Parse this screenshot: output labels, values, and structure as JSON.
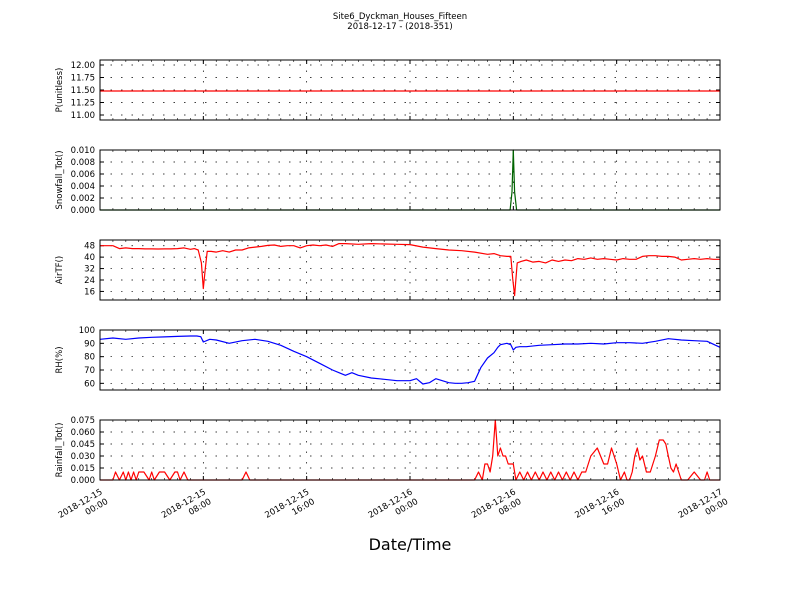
{
  "title": "Site6_Dyckman_Houses_Fifteen",
  "subtitle": "2018-12-17 - (2018-351)",
  "xlabel": "Date/Time",
  "x_ticks": [
    {
      "hour": 0,
      "line1": "2018-12-15",
      "line2": "00:00"
    },
    {
      "hour": 8,
      "line1": "2018-12-15",
      "line2": "08:00"
    },
    {
      "hour": 16,
      "line1": "2018-12-15",
      "line2": "16:00"
    },
    {
      "hour": 24,
      "line1": "2018-12-16",
      "line2": "00:00"
    },
    {
      "hour": 32,
      "line1": "2018-12-16",
      "line2": "08:00"
    },
    {
      "hour": 40,
      "line1": "2018-12-16",
      "line2": "16:00"
    },
    {
      "hour": 48,
      "line1": "2018-12-17",
      "line2": "00:00"
    }
  ],
  "chart_data": [
    {
      "type": "line",
      "ylabel": "P(unitless)",
      "color": "#ff0000",
      "xlim": [
        0,
        48
      ],
      "ylim": [
        10.9,
        12.1
      ],
      "yticks": [
        11.0,
        11.25,
        11.5,
        11.75,
        12.0
      ],
      "yticklabels": [
        "11.00",
        "11.25",
        "11.50",
        "11.75",
        "12.00"
      ],
      "grid": true,
      "x": [
        0,
        48
      ],
      "y": [
        11.48,
        11.48
      ]
    },
    {
      "type": "line",
      "ylabel": "Snowfall_Tot()",
      "color": "#006400",
      "xlim": [
        0,
        48
      ],
      "ylim": [
        0,
        0.01
      ],
      "yticks": [
        0,
        0.002,
        0.004,
        0.006,
        0.008,
        0.01
      ],
      "yticklabels": [
        "0.000",
        "0.002",
        "0.004",
        "0.006",
        "0.008",
        "0.010"
      ],
      "grid": true,
      "x": [
        0,
        31.75,
        31.9,
        32.0,
        32.1,
        32.25,
        48
      ],
      "y": [
        0,
        0,
        0.003,
        0.01,
        0.003,
        0,
        0
      ]
    },
    {
      "type": "line",
      "ylabel": "AirTF()",
      "color": "#ff0000",
      "xlim": [
        0,
        48
      ],
      "ylim": [
        10,
        52
      ],
      "yticks": [
        16,
        24,
        32,
        40,
        48
      ],
      "yticklabels": [
        "16",
        "24",
        "32",
        "40",
        "48"
      ],
      "grid": true,
      "x": [
        0,
        0.5,
        1.0,
        1.5,
        2.0,
        2.5,
        3.0,
        3.5,
        4.0,
        4.5,
        5.0,
        5.5,
        6.0,
        6.5,
        7.0,
        7.3,
        7.6,
        7.85,
        8.0,
        8.15,
        8.3,
        8.6,
        9.0,
        9.5,
        10.0,
        10.5,
        11.0,
        11.5,
        12.0,
        12.5,
        13.0,
        13.5,
        14.0,
        14.5,
        15.0,
        15.5,
        16.0,
        16.5,
        17.0,
        17.5,
        18.0,
        18.5,
        19.0,
        20.0,
        21.0,
        22.0,
        23.0,
        24.0,
        25.0,
        26.0,
        27.0,
        28.0,
        29.0,
        30.0,
        30.5,
        31.0,
        31.5,
        31.8,
        31.95,
        32.1,
        32.3,
        32.6,
        33.0,
        33.5,
        34.0,
        34.5,
        35.0,
        35.5,
        36.0,
        36.5,
        37.0,
        37.5,
        38.0,
        38.5,
        39.0,
        39.5,
        40.0,
        40.5,
        41.0,
        41.5,
        42.0,
        42.5,
        43.0,
        43.5,
        44.0,
        44.5,
        45.0,
        45.5,
        46.0,
        46.5,
        47.0,
        47.5,
        48.0
      ],
      "y": [
        48,
        48,
        48,
        46,
        46.5,
        46,
        46,
        45.8,
        45.8,
        45.7,
        45.8,
        45.8,
        46,
        46.5,
        45.5,
        46,
        45,
        36,
        18,
        32,
        44,
        44,
        43.5,
        44.5,
        43.5,
        45,
        45,
        46.5,
        47,
        47.5,
        48.2,
        48.5,
        47.5,
        48,
        48,
        46.5,
        48,
        48.5,
        48,
        48.5,
        47.5,
        49.5,
        49.5,
        49,
        49.5,
        49.2,
        49,
        48.8,
        47,
        46,
        45,
        44.5,
        43.5,
        42,
        42.5,
        41,
        40.5,
        40.5,
        25,
        13,
        36,
        37,
        38,
        36.5,
        37,
        36,
        38,
        37,
        38,
        37.5,
        39,
        38.5,
        39.5,
        38.5,
        39,
        38.5,
        38,
        39,
        38.5,
        38.5,
        40.5,
        41,
        41,
        40.5,
        40.5,
        40,
        38,
        38.5,
        39,
        38.5,
        39,
        38.5,
        38.5
      ]
    },
    {
      "type": "line",
      "ylabel": "RH(%)",
      "color": "#0000ff",
      "xlim": [
        0,
        48
      ],
      "ylim": [
        55,
        100
      ],
      "yticks": [
        60,
        70,
        80,
        90,
        100
      ],
      "yticklabels": [
        "60",
        "70",
        "80",
        "90",
        "100"
      ],
      "grid": true,
      "x": [
        0,
        1,
        2,
        3,
        4,
        5,
        6,
        7,
        7.5,
        7.8,
        8.0,
        8.5,
        9,
        10,
        11,
        12,
        13,
        14,
        15,
        16,
        17,
        18,
        18.5,
        19,
        19.5,
        20,
        21,
        22,
        23,
        24,
        24.5,
        25,
        25.5,
        26,
        26.5,
        27,
        27.5,
        28,
        28.5,
        29,
        29.5,
        30,
        30.5,
        30.8,
        31.0,
        31.5,
        31.8,
        32.0,
        32.2,
        32.5,
        33,
        34,
        35,
        36,
        37,
        38,
        39,
        40,
        41,
        42,
        43,
        44,
        45,
        46,
        47,
        48
      ],
      "y": [
        93,
        94,
        93,
        94,
        94.5,
        94.8,
        95.2,
        95.5,
        95.5,
        95,
        91,
        93,
        92.5,
        90,
        92,
        93,
        91.5,
        88.5,
        84,
        80,
        75,
        70,
        68,
        66,
        68,
        66,
        64,
        63,
        62,
        62,
        63.5,
        59.5,
        60.5,
        63.5,
        62,
        60.5,
        60,
        60,
        60.5,
        61.5,
        72,
        79,
        83,
        87,
        89,
        90,
        89,
        85,
        87,
        87.5,
        87.5,
        88.5,
        89,
        89.5,
        89.5,
        90,
        89.5,
        90.5,
        90.5,
        90,
        91.5,
        93.5,
        92.5,
        92,
        91.5,
        87
      ]
    },
    {
      "type": "line",
      "ylabel": "Rainfall_Tot()",
      "color": "#ff0000",
      "xlim": [
        0,
        48
      ],
      "ylim": [
        0,
        0.075
      ],
      "yticks": [
        0,
        0.015,
        0.03,
        0.045,
        0.06,
        0.075
      ],
      "yticklabels": [
        "0.000",
        "0.015",
        "0.030",
        "0.045",
        "0.060",
        "0.075"
      ],
      "grid": true,
      "x": [
        0,
        1.0,
        1.2,
        1.5,
        1.8,
        2.0,
        2.2,
        2.4,
        2.6,
        2.8,
        3.0,
        3.4,
        3.8,
        4.0,
        4.2,
        4.6,
        5.0,
        5.4,
        5.8,
        6.0,
        6.2,
        6.5,
        6.8,
        7.0,
        11.0,
        11.3,
        11.6,
        29.0,
        29.3,
        29.6,
        29.8,
        30.0,
        30.2,
        30.4,
        30.6,
        30.8,
        31.0,
        31.2,
        31.4,
        31.6,
        31.8,
        32.0,
        32.2,
        32.5,
        32.8,
        33.1,
        33.4,
        33.7,
        34.0,
        34.3,
        34.6,
        34.9,
        35.2,
        35.5,
        35.8,
        36.1,
        36.4,
        36.7,
        37.0,
        37.3,
        37.6,
        38.0,
        38.5,
        39.0,
        39.3,
        39.6,
        40.0,
        40.3,
        40.6,
        40.8,
        41.0,
        41.2,
        41.4,
        41.6,
        41.8,
        42.0,
        42.3,
        42.6,
        43.0,
        43.3,
        43.6,
        43.8,
        44.0,
        44.2,
        44.4,
        44.6,
        44.8,
        45.0,
        45.5,
        46.0,
        46.5,
        46.8,
        47.0,
        47.2,
        47.5,
        47.8,
        48.0
      ],
      "y": [
        0,
        0,
        0.01,
        0,
        0.01,
        0,
        0.01,
        0,
        0.01,
        0,
        0.01,
        0.01,
        0,
        0.01,
        0,
        0.01,
        0.01,
        0,
        0.01,
        0.01,
        0,
        0.01,
        0,
        0,
        0,
        0.01,
        0,
        0,
        0.01,
        0,
        0.02,
        0.02,
        0.01,
        0.03,
        0.075,
        0.03,
        0.04,
        0.03,
        0.03,
        0.02,
        0.02,
        0.02,
        0,
        0.01,
        0,
        0.01,
        0,
        0.01,
        0,
        0.01,
        0,
        0.01,
        0,
        0.01,
        0,
        0.01,
        0,
        0.01,
        0,
        0.01,
        0.01,
        0.03,
        0.04,
        0.02,
        0.02,
        0.04,
        0.02,
        0,
        0.01,
        0,
        0,
        0.01,
        0.03,
        0.04,
        0.025,
        0.03,
        0.01,
        0.01,
        0.03,
        0.05,
        0.05,
        0.045,
        0.03,
        0.015,
        0.01,
        0.02,
        0.01,
        0,
        0,
        0.01,
        0,
        0,
        0.01,
        0,
        0,
        0,
        0
      ]
    }
  ]
}
